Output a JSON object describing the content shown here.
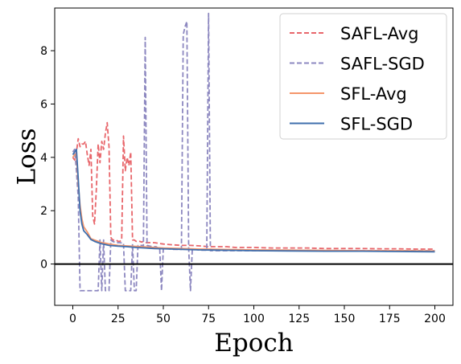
{
  "chart_data": {
    "type": "line",
    "title": "",
    "xlabel": "Epoch",
    "ylabel": "Loss",
    "xlim": [
      -10,
      210
    ],
    "ylim": [
      -1.55,
      9.6
    ],
    "xticks": [
      0,
      25,
      50,
      75,
      100,
      125,
      150,
      175,
      200
    ],
    "yticks": [
      0,
      2,
      4,
      6,
      8
    ],
    "hline": 0,
    "grid": false,
    "legend_position": "top-right",
    "series": [
      {
        "name": "SAFL-Avg",
        "color": "#e8666b",
        "style": "dashed",
        "x": [
          0,
          1,
          2,
          3,
          4,
          5,
          6,
          7,
          8,
          9,
          10,
          11,
          12,
          13,
          14,
          15,
          16,
          17,
          18,
          19,
          20,
          21,
          22,
          23,
          24,
          25,
          26,
          27,
          28,
          29,
          30,
          31,
          32,
          33,
          34,
          35,
          36,
          37,
          38,
          39,
          40,
          45,
          50,
          55,
          60,
          65,
          70,
          75,
          80,
          85,
          90,
          95,
          100,
          110,
          120,
          130,
          140,
          150,
          160,
          170,
          180,
          190,
          200
        ],
        "y": [
          4.0,
          3.9,
          4.2,
          4.7,
          4.4,
          4.5,
          4.5,
          4.6,
          4.1,
          3.7,
          4.3,
          1.8,
          1.5,
          2.8,
          4.5,
          3.8,
          4.6,
          4.3,
          4.9,
          5.3,
          4.4,
          1.0,
          0.9,
          0.9,
          0.9,
          0.85,
          0.85,
          0.9,
          4.8,
          3.5,
          4.0,
          3.7,
          4.2,
          0.9,
          0.9,
          0.85,
          0.85,
          0.85,
          0.82,
          0.85,
          0.8,
          0.8,
          0.75,
          0.72,
          0.7,
          0.7,
          0.68,
          0.65,
          0.65,
          0.65,
          0.62,
          0.62,
          0.62,
          0.6,
          0.6,
          0.6,
          0.58,
          0.58,
          0.58,
          0.57,
          0.57,
          0.56,
          0.56
        ]
      },
      {
        "name": "SAFL-SGD",
        "color": "#8d88c0",
        "style": "dashed",
        "x": [
          0,
          1,
          2,
          3,
          4,
          5,
          6,
          8,
          10,
          12,
          13,
          14,
          15,
          16,
          17,
          18,
          19,
          20,
          21,
          22,
          24,
          26,
          28,
          29,
          30,
          31,
          32,
          33,
          34,
          35,
          36,
          37,
          38,
          39,
          40,
          41,
          42,
          44,
          46,
          47,
          48,
          49,
          50,
          55,
          60,
          61,
          62,
          63,
          64,
          65,
          66,
          67,
          68,
          70,
          72,
          74,
          75,
          76,
          77,
          80,
          90,
          100,
          110,
          120,
          130,
          140,
          150,
          160,
          170,
          180,
          190,
          200
        ],
        "y": [
          4.2,
          4.3,
          3.5,
          2.5,
          -1.0,
          -1.0,
          -1.0,
          -1.0,
          -1.0,
          -1.0,
          -1.0,
          -1.0,
          0.9,
          -1.0,
          0.9,
          -1.0,
          -1.0,
          -1.0,
          0.9,
          0.85,
          0.8,
          0.8,
          0.78,
          -1.0,
          -1.0,
          -1.0,
          -1.0,
          0.75,
          -1.0,
          -1.0,
          0.7,
          0.7,
          0.7,
          0.68,
          8.5,
          0.7,
          0.68,
          0.65,
          0.65,
          0.6,
          0.6,
          -1.0,
          0.6,
          0.55,
          0.55,
          8.6,
          8.9,
          9.1,
          0.6,
          -1.0,
          0.55,
          0.55,
          0.55,
          0.52,
          0.52,
          0.52,
          9.4,
          0.5,
          0.5,
          0.5,
          0.5,
          0.5,
          0.5,
          0.5,
          0.5,
          0.5,
          0.5,
          0.5,
          0.5,
          0.5,
          0.5,
          0.5
        ]
      },
      {
        "name": "SFL-Avg",
        "color": "#f4956a",
        "style": "solid",
        "x": [
          0,
          1,
          2,
          3,
          4,
          5,
          6,
          8,
          10,
          12,
          14,
          16,
          18,
          20,
          25,
          30,
          35,
          40,
          45,
          50,
          60,
          70,
          80,
          90,
          100,
          120,
          140,
          160,
          180,
          200
        ],
        "y": [
          4.0,
          4.1,
          4.1,
          3.0,
          2.2,
          1.7,
          1.4,
          1.2,
          0.95,
          0.9,
          0.85,
          0.8,
          0.78,
          0.75,
          0.7,
          0.68,
          0.66,
          0.64,
          0.62,
          0.6,
          0.58,
          0.56,
          0.55,
          0.54,
          0.53,
          0.52,
          0.51,
          0.5,
          0.5,
          0.49
        ]
      },
      {
        "name": "SFL-SGD",
        "color": "#3f6fad",
        "style": "solid",
        "x": [
          0,
          1,
          2,
          3,
          4,
          5,
          6,
          8,
          10,
          12,
          14,
          16,
          18,
          20,
          25,
          30,
          35,
          40,
          45,
          50,
          60,
          70,
          80,
          90,
          100,
          120,
          140,
          160,
          180,
          200
        ],
        "y": [
          4.1,
          4.2,
          4.3,
          3.2,
          2.0,
          1.5,
          1.25,
          1.1,
          0.92,
          0.85,
          0.8,
          0.76,
          0.73,
          0.7,
          0.67,
          0.65,
          0.62,
          0.6,
          0.58,
          0.57,
          0.55,
          0.53,
          0.52,
          0.51,
          0.5,
          0.49,
          0.48,
          0.48,
          0.47,
          0.46
        ]
      }
    ]
  }
}
